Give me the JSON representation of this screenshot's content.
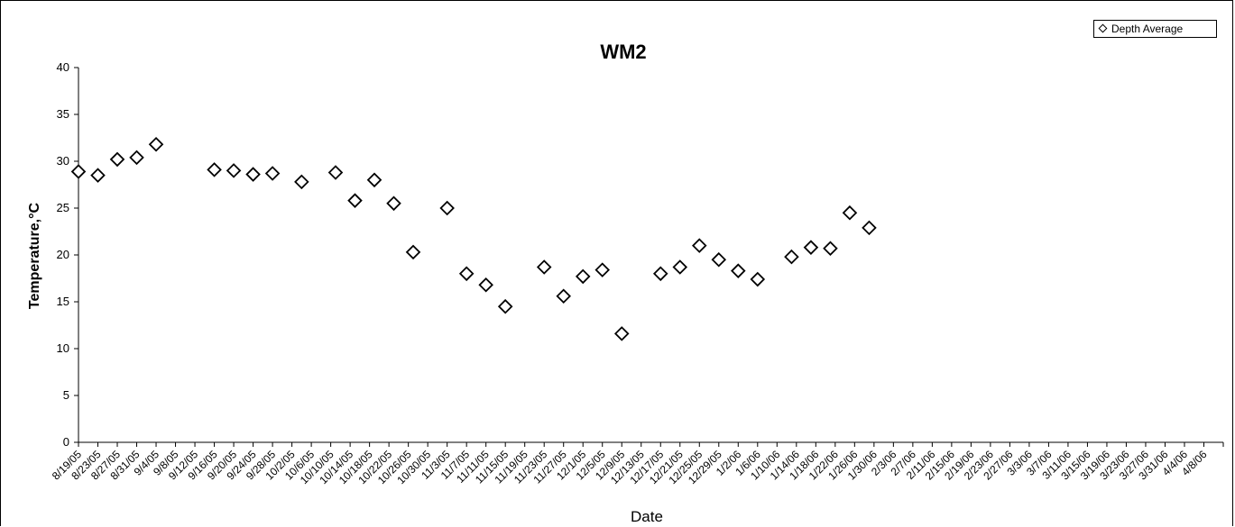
{
  "chart_data": {
    "type": "scatter",
    "title": "WM2",
    "xlabel": "Date",
    "ylabel": "Temperature,°C",
    "ylim": [
      0,
      40
    ],
    "y_ticks": [
      "0",
      "5",
      "10",
      "15",
      "20",
      "25",
      "30",
      "35",
      "40"
    ],
    "x_tick_labels": [
      "8/19/05",
      "8/23/05",
      "8/27/05",
      "8/31/05",
      "9/4/05",
      "9/8/05",
      "9/12/05",
      "9/16/05",
      "9/20/05",
      "9/24/05",
      "9/28/05",
      "10/2/05",
      "10/6/05",
      "10/10/05",
      "10/14/05",
      "10/18/05",
      "10/22/05",
      "10/26/05",
      "10/30/05",
      "11/3/05",
      "11/7/05",
      "11/11/05",
      "11/15/05",
      "11/19/05",
      "11/23/05",
      "11/27/05",
      "12/1/05",
      "12/5/05",
      "12/9/05",
      "12/13/05",
      "12/17/05",
      "12/21/05",
      "12/25/05",
      "12/29/05",
      "1/2/06",
      "1/6/06",
      "1/10/06",
      "1/14/06",
      "1/18/06",
      "1/22/06",
      "1/26/06",
      "1/30/06",
      "2/3/06",
      "2/7/06",
      "2/11/06",
      "2/15/06",
      "2/19/06",
      "2/23/06",
      "2/27/06",
      "3/3/06",
      "3/7/06",
      "3/11/06",
      "3/15/06",
      "3/19/06",
      "3/23/06",
      "3/27/06",
      "3/31/06",
      "4/4/06",
      "4/8/06"
    ],
    "grid": false,
    "legend_position": "top-right",
    "series": [
      {
        "name": "Depth Average",
        "marker": "open-diamond",
        "color": "#000000",
        "points": [
          {
            "x": "8/19/05",
            "y": 28.9
          },
          {
            "x": "8/23/05",
            "y": 28.5
          },
          {
            "x": "8/27/05",
            "y": 30.2
          },
          {
            "x": "8/31/05",
            "y": 30.4
          },
          {
            "x": "9/4/05",
            "y": 31.8
          },
          {
            "x": "9/16/05",
            "y": 29.1
          },
          {
            "x": "9/20/05",
            "y": 29.0
          },
          {
            "x": "9/24/05",
            "y": 28.6
          },
          {
            "x": "9/28/05",
            "y": 28.7
          },
          {
            "x": "10/4/05",
            "y": 27.8
          },
          {
            "x": "10/11/05",
            "y": 28.8
          },
          {
            "x": "10/15/05",
            "y": 25.8
          },
          {
            "x": "10/19/05",
            "y": 28.0
          },
          {
            "x": "10/23/05",
            "y": 25.5
          },
          {
            "x": "10/27/05",
            "y": 20.3
          },
          {
            "x": "11/3/05",
            "y": 25.0
          },
          {
            "x": "11/7/05",
            "y": 18.0
          },
          {
            "x": "11/11/05",
            "y": 16.8
          },
          {
            "x": "11/15/05",
            "y": 14.5
          },
          {
            "x": "11/23/05",
            "y": 18.7
          },
          {
            "x": "11/27/05",
            "y": 15.6
          },
          {
            "x": "12/1/05",
            "y": 17.7
          },
          {
            "x": "12/5/05",
            "y": 18.4
          },
          {
            "x": "12/9/05",
            "y": 11.6
          },
          {
            "x": "12/17/05",
            "y": 18.0
          },
          {
            "x": "12/21/05",
            "y": 18.7
          },
          {
            "x": "12/25/05",
            "y": 21.0
          },
          {
            "x": "12/29/05",
            "y": 19.5
          },
          {
            "x": "1/2/06",
            "y": 18.3
          },
          {
            "x": "1/6/06",
            "y": 17.4
          },
          {
            "x": "1/13/06",
            "y": 19.8
          },
          {
            "x": "1/17/06",
            "y": 20.8
          },
          {
            "x": "1/21/06",
            "y": 20.7
          },
          {
            "x": "1/25/06",
            "y": 24.5
          },
          {
            "x": "1/29/06",
            "y": 22.9
          }
        ]
      }
    ]
  }
}
